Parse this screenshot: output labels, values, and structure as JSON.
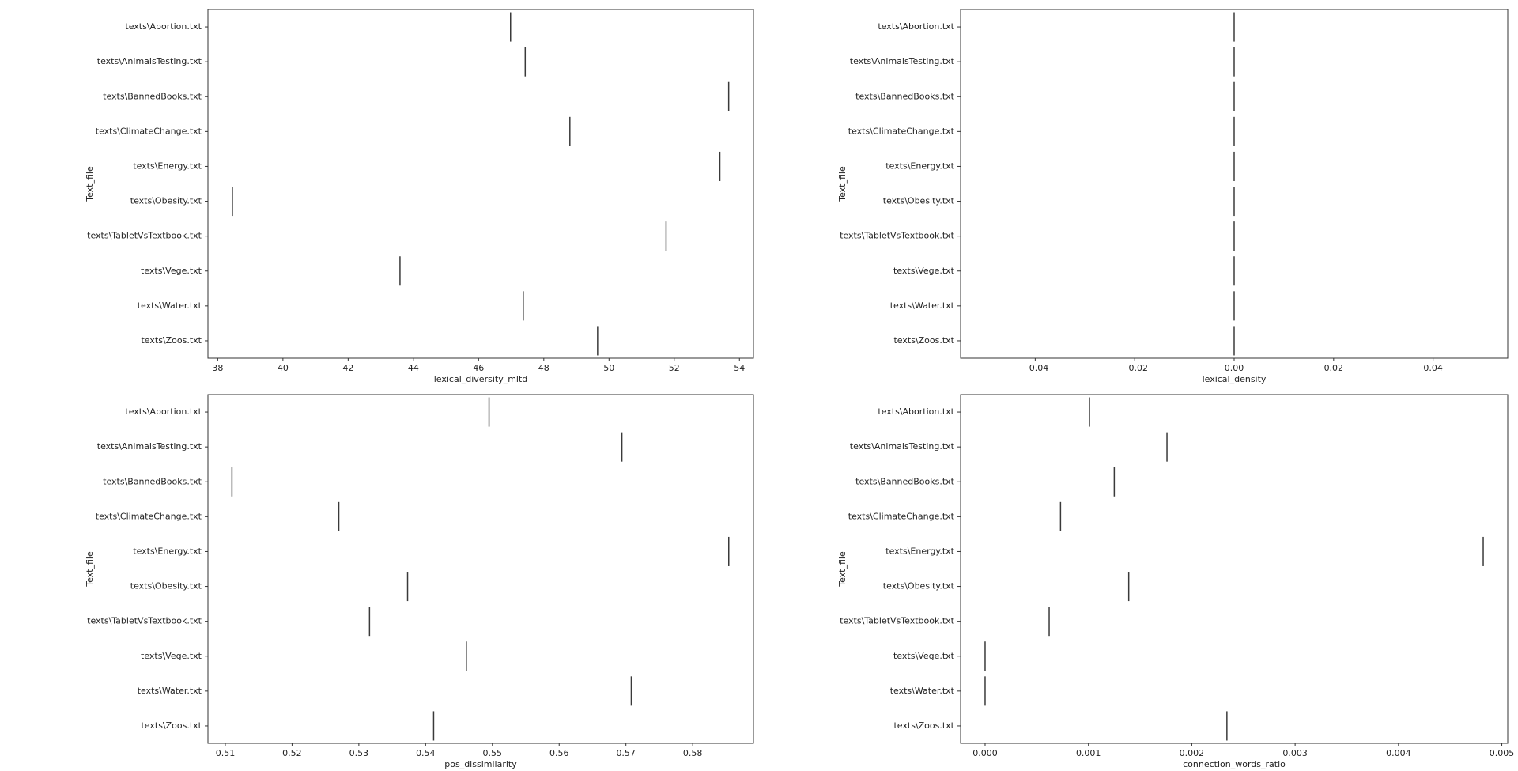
{
  "chart_data": [
    {
      "type": "violin",
      "xlabel": "lexical_diversity_mltd",
      "ylabel": "Text_file",
      "color": "#3a3a3a",
      "categories": [
        "texts\\Abortion.txt",
        "texts\\AnimalsTesting.txt",
        "texts\\BannedBooks.txt",
        "texts\\ClimateChange.txt",
        "texts\\Energy.txt",
        "texts\\Obesity.txt",
        "texts\\TabletVsTextbook.txt",
        "texts\\Vege.txt",
        "texts\\Water.txt",
        "texts\\Zoos.txt"
      ],
      "values": [
        46.98,
        47.43,
        53.67,
        48.8,
        53.4,
        38.45,
        51.75,
        43.59,
        47.37,
        49.65
      ],
      "xlim": [
        37.7,
        54.43
      ],
      "xticks": [
        38,
        40,
        42,
        44,
        46,
        48,
        50,
        52,
        54
      ]
    },
    {
      "type": "violin",
      "xlabel": "lexical_density",
      "ylabel": "Text_file",
      "color": "#3a3a3a",
      "categories": [
        "texts\\Abortion.txt",
        "texts\\AnimalsTesting.txt",
        "texts\\BannedBooks.txt",
        "texts\\ClimateChange.txt",
        "texts\\Energy.txt",
        "texts\\Obesity.txt",
        "texts\\TabletVsTextbook.txt",
        "texts\\Vege.txt",
        "texts\\Water.txt",
        "texts\\Zoos.txt"
      ],
      "values": [
        0,
        0,
        0,
        0,
        0,
        0,
        0,
        0,
        0,
        0
      ],
      "xlim": [
        -0.055,
        0.055
      ],
      "xticks": [
        {
          "value": -0.04,
          "label": "−0.04"
        },
        {
          "value": -0.02,
          "label": "−0.02"
        },
        {
          "value": 0,
          "label": "0.00"
        },
        {
          "value": 0.02,
          "label": "0.02"
        },
        {
          "value": 0.04,
          "label": "0.04"
        }
      ]
    },
    {
      "type": "violin",
      "xlabel": "pos_dissimilarity",
      "ylabel": "Text_file",
      "color": "#3a3a3a",
      "categories": [
        "texts\\Abortion.txt",
        "texts\\AnimalsTesting.txt",
        "texts\\BannedBooks.txt",
        "texts\\ClimateChange.txt",
        "texts\\Energy.txt",
        "texts\\Obesity.txt",
        "texts\\TabletVsTextbook.txt",
        "texts\\Vege.txt",
        "texts\\Water.txt",
        "texts\\Zoos.txt"
      ],
      "values": [
        0.5495,
        0.5694,
        0.511,
        0.527,
        0.5854,
        0.5373,
        0.5316,
        0.5461,
        0.5708,
        0.5412
      ],
      "xlim": [
        0.5074,
        0.5891
      ],
      "xticks": [
        0.51,
        0.52,
        0.53,
        0.54,
        0.55,
        0.56,
        0.57,
        0.58
      ]
    },
    {
      "type": "violin",
      "xlabel": "connection_words_ratio",
      "ylabel": "Text_file",
      "color": "#3a3a3a",
      "categories": [
        "texts\\Abortion.txt",
        "texts\\AnimalsTesting.txt",
        "texts\\BannedBooks.txt",
        "texts\\ClimateChange.txt",
        "texts\\Energy.txt",
        "texts\\Obesity.txt",
        "texts\\TabletVsTextbook.txt",
        "texts\\Vege.txt",
        "texts\\Water.txt",
        "texts\\Zoos.txt"
      ],
      "values": [
        0.00101,
        0.00176,
        0.00125,
        0.00073,
        0.00482,
        0.00139,
        0.00062,
        0,
        0,
        0.00234
      ],
      "xlim": [
        -0.000237,
        0.005057
      ],
      "xticks": [
        {
          "value": 0,
          "label": "0.000"
        },
        {
          "value": 0.001,
          "label": "0.001"
        },
        {
          "value": 0.002,
          "label": "0.002"
        },
        {
          "value": 0.003,
          "label": "0.003"
        },
        {
          "value": 0.004,
          "label": "0.004"
        },
        {
          "value": 0.005,
          "label": "0.005"
        }
      ]
    }
  ]
}
